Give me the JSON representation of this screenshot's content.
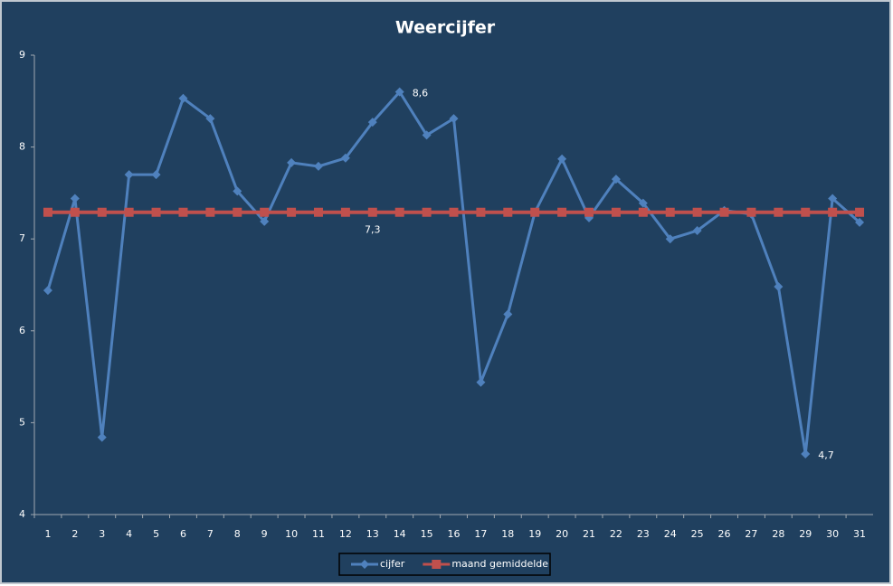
{
  "chart_data": {
    "type": "line",
    "title": "Weercijfer",
    "categories": [
      "1",
      "2",
      "3",
      "4",
      "5",
      "6",
      "7",
      "8",
      "9",
      "10",
      "11",
      "12",
      "13",
      "14",
      "15",
      "16",
      "17",
      "18",
      "19",
      "20",
      "21",
      "22",
      "23",
      "24",
      "25",
      "26",
      "27",
      "28",
      "29",
      "30",
      "31"
    ],
    "series": [
      {
        "name": "cijfer",
        "color": "#4f81bd",
        "marker": "diamond",
        "values": [
          6.44,
          7.44,
          4.84,
          7.7,
          7.7,
          8.53,
          8.31,
          7.52,
          7.19,
          7.83,
          7.79,
          7.88,
          8.27,
          8.6,
          8.13,
          8.31,
          5.44,
          6.18,
          7.29,
          7.87,
          7.23,
          7.65,
          7.39,
          7.0,
          7.09,
          7.31,
          7.27,
          6.48,
          4.66,
          7.44,
          7.18
        ],
        "value_labels": [
          null,
          null,
          null,
          null,
          null,
          null,
          null,
          null,
          null,
          null,
          null,
          null,
          null,
          "8,6",
          null,
          null,
          null,
          null,
          null,
          null,
          null,
          null,
          null,
          null,
          null,
          null,
          null,
          null,
          "4,7",
          null,
          null
        ]
      },
      {
        "name": "maand gemiddelde",
        "color": "#c0504d",
        "marker": "square",
        "values": [
          7.29,
          7.29,
          7.29,
          7.29,
          7.29,
          7.29,
          7.29,
          7.29,
          7.29,
          7.29,
          7.29,
          7.29,
          7.29,
          7.29,
          7.29,
          7.29,
          7.29,
          7.29,
          7.29,
          7.29,
          7.29,
          7.29,
          7.29,
          7.29,
          7.29,
          7.29,
          7.29,
          7.29,
          7.29,
          7.29,
          7.29
        ],
        "value_labels": [
          null,
          null,
          null,
          null,
          null,
          null,
          null,
          null,
          null,
          null,
          null,
          null,
          "7,3",
          null,
          null,
          null,
          null,
          null,
          null,
          null,
          null,
          null,
          null,
          null,
          null,
          null,
          null,
          null,
          null,
          null,
          null
        ]
      }
    ],
    "ylim": [
      4,
      9
    ],
    "yticks": [
      4,
      5,
      6,
      7,
      8,
      9
    ],
    "grid": false,
    "legend": "bottom"
  }
}
